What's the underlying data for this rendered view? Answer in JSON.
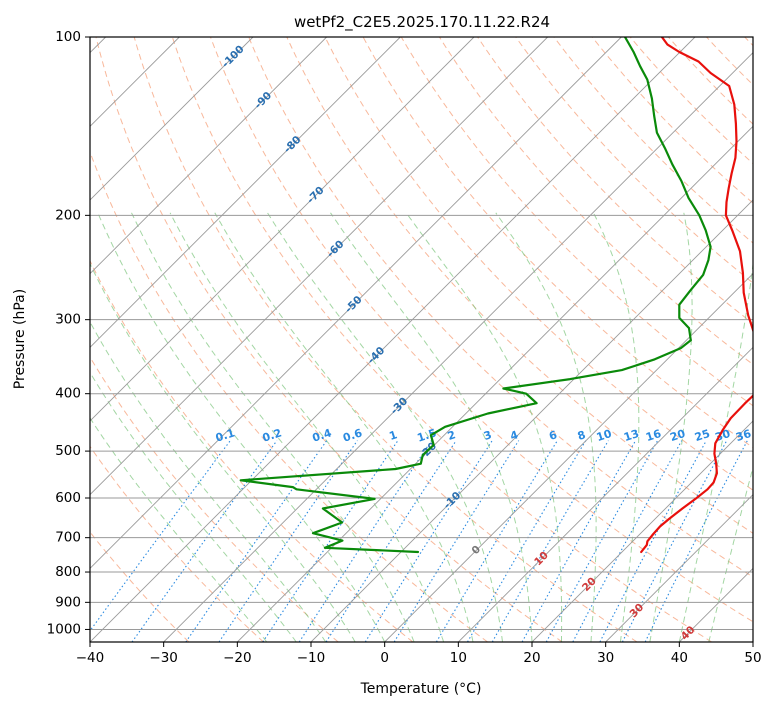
{
  "chart_data": {
    "type": "line",
    "chart_kind": "skew-T log-p sounding",
    "title": "wetPf2_C2E5.2025.170.11.22.R24",
    "xlabel": "Temperature (°C)",
    "ylabel": "Pressure (hPa)",
    "xlim": [
      -40,
      50
    ],
    "ylim": [
      1050,
      100
    ],
    "y_scale": "log",
    "grid": true,
    "x_ticks": [
      "−40",
      "−30",
      "−20",
      "−10",
      "0",
      "10",
      "20",
      "30",
      "40",
      "50"
    ],
    "y_ticks": [
      "100",
      "200",
      "300",
      "400",
      "500",
      "600",
      "700",
      "800",
      "900",
      "1000"
    ],
    "colors": {
      "temperature": "#e8100c",
      "dewpoint": "#0a8a0a",
      "isotherm_grid": "#9a9a9a",
      "dry_adiabat": "#f5a07a",
      "moist_adiabat": "#7cc47c",
      "mixing_ratio": "#2a8ae0",
      "isotherm_label": "#2a6fb0",
      "dry_adiabat_label": "#d03a3a"
    },
    "series": [
      {
        "key": "temperature",
        "points": [
          [
            22.6,
            740
          ],
          [
            22.4,
            720
          ],
          [
            22.0,
            710
          ],
          [
            21.8,
            690
          ],
          [
            21.7,
            670
          ],
          [
            21.9,
            650
          ],
          [
            22.3,
            625
          ],
          [
            22.8,
            600
          ],
          [
            23.1,
            580
          ],
          [
            23.0,
            565
          ],
          [
            22.2,
            545
          ],
          [
            20.8,
            525
          ],
          [
            19.2,
            505
          ],
          [
            17.9,
            485
          ],
          [
            17.1,
            460
          ],
          [
            16.6,
            440
          ],
          [
            16.5,
            415
          ],
          [
            16.6,
            395
          ],
          [
            16.2,
            380
          ],
          [
            14.5,
            360
          ],
          [
            11.5,
            340
          ],
          [
            8.5,
            318
          ],
          [
            5.0,
            295
          ],
          [
            1.3,
            270
          ],
          [
            -1.5,
            250
          ],
          [
            -4.8,
            230
          ],
          [
            -8.7,
            212
          ],
          [
            -11.6,
            200
          ],
          [
            -13.3,
            190
          ],
          [
            -14.9,
            180
          ],
          [
            -16.5,
            170
          ],
          [
            -18.1,
            160
          ],
          [
            -20.2,
            150
          ],
          [
            -22.7,
            140
          ],
          [
            -25.5,
            130
          ],
          [
            -28.7,
            121
          ],
          [
            -33.0,
            115
          ],
          [
            -36.2,
            110
          ],
          [
            -40.1,
            106
          ],
          [
            -42.7,
            103
          ],
          [
            -44.5,
            100
          ]
        ]
      },
      {
        "key": "dewpoint",
        "points": [
          [
            -7.7,
            740
          ],
          [
            -20.9,
            728
          ],
          [
            -19.5,
            708
          ],
          [
            -24.5,
            688
          ],
          [
            -22.0,
            660
          ],
          [
            -26.5,
            625
          ],
          [
            -20.8,
            602
          ],
          [
            -32.7,
            580
          ],
          [
            -33.5,
            575
          ],
          [
            -41.5,
            560
          ],
          [
            -22.0,
            536
          ],
          [
            -19.3,
            525
          ],
          [
            -20.2,
            508
          ],
          [
            -20.1,
            488
          ],
          [
            -21.8,
            470
          ],
          [
            -21.0,
            455
          ],
          [
            -17.0,
            432
          ],
          [
            -11.8,
            415
          ],
          [
            -14.5,
            400
          ],
          [
            -18.3,
            392
          ],
          [
            -10.5,
            378
          ],
          [
            -4.7,
            365
          ],
          [
            -1.7,
            350
          ],
          [
            0.3,
            335
          ],
          [
            0.6,
            325
          ],
          [
            -1.3,
            310
          ],
          [
            -4.0,
            298
          ],
          [
            -5.8,
            283
          ],
          [
            -6.2,
            268
          ],
          [
            -6.6,
            252
          ],
          [
            -7.9,
            238
          ],
          [
            -9.4,
            226
          ],
          [
            -12.3,
            212
          ],
          [
            -15.2,
            200
          ],
          [
            -19.0,
            187
          ],
          [
            -22.3,
            175
          ],
          [
            -25.8,
            164
          ],
          [
            -29.0,
            154
          ],
          [
            -32.2,
            145
          ],
          [
            -34.8,
            136
          ],
          [
            -37.5,
            127
          ],
          [
            -40.7,
            118
          ],
          [
            -43.5,
            112
          ],
          [
            -46.3,
            106
          ],
          [
            -49.5,
            100
          ]
        ]
      }
    ],
    "isotherm_labels": [
      "-100",
      "-90",
      "-80",
      "-70",
      "-60",
      "-50",
      "-40",
      "-30",
      "-20",
      "-10",
      "0"
    ],
    "mixing_ratio_labels": [
      "0.1",
      "0.2",
      "0.4",
      "0.6",
      "1",
      "1.5",
      "2",
      "3",
      "4",
      "6",
      "8",
      "10",
      "13",
      "16",
      "20",
      "25",
      "30",
      "36"
    ],
    "dry_adiabat_labels": [
      "10",
      "20",
      "30",
      "40"
    ]
  }
}
